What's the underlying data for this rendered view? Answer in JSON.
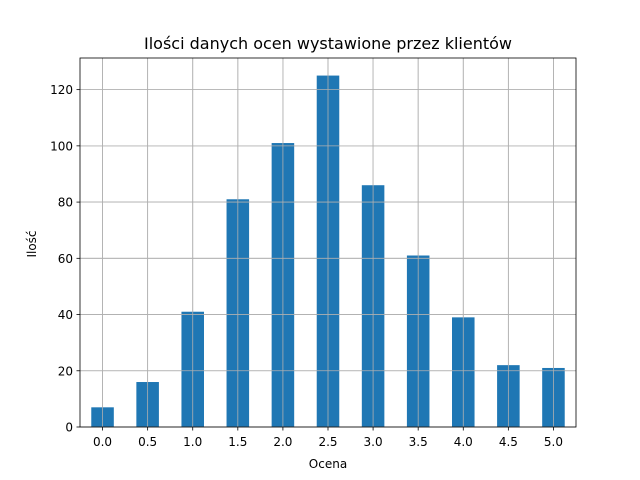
{
  "chart_data": {
    "type": "bar",
    "title": "Ilości danych ocen wystawione przez klientów",
    "xlabel": "Ocena",
    "ylabel": "Ilość",
    "categories": [
      "0.0",
      "0.5",
      "1.0",
      "1.5",
      "2.0",
      "2.5",
      "3.0",
      "3.5",
      "4.0",
      "4.5",
      "5.0"
    ],
    "values": [
      7,
      16,
      41,
      81,
      101,
      125,
      86,
      61,
      39,
      22,
      21
    ],
    "ylim": [
      0,
      131.25
    ],
    "yticks": [
      0,
      20,
      40,
      60,
      80,
      100,
      120
    ],
    "grid": true,
    "bar_color": "#1f77b4",
    "grid_color": "#b0b0b0"
  }
}
